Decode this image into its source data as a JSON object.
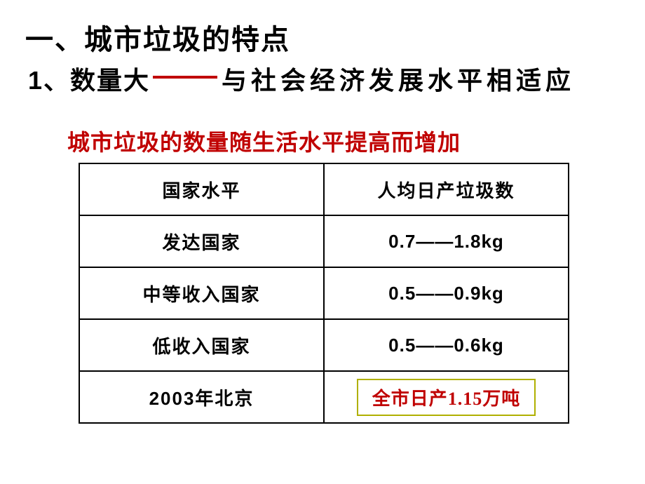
{
  "heading": "一、城市垃圾的特点",
  "subpoint": {
    "num_label": "1、数量大",
    "dash_color": "#c00000",
    "right_text": "与社会经济发展水平相适应"
  },
  "red_title": "城市垃圾的数量随生活水平提高而增加",
  "table": {
    "border_color": "#000000",
    "header": {
      "col1": "国家水平",
      "col2": "人均日产垃圾数"
    },
    "rows": [
      {
        "label": "发达国家",
        "value": "0.7——1.8kg"
      },
      {
        "label": "中等收入国家",
        "value": "0.5——0.9kg"
      },
      {
        "label": "低收入国家",
        "value": "0.5——0.6kg"
      }
    ],
    "beijing": {
      "label": "2003年北京",
      "box_text_prefix": "全市日产",
      "box_number": "1.15",
      "box_text_suffix": "万吨",
      "box_border_color": "#b0b000",
      "box_text_color": "#c00000"
    }
  },
  "colors": {
    "background": "#ffffff",
    "text": "#000000",
    "accent_red": "#c00000"
  },
  "fonts": {
    "heading_size_pt": 30,
    "body_size_pt": 20,
    "family": "SimHei"
  }
}
